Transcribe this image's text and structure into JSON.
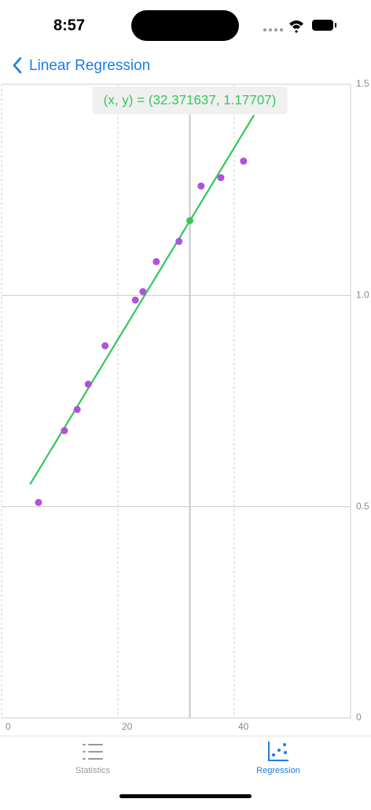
{
  "status_bar": {
    "time": "8:57"
  },
  "nav": {
    "back_title": "Linear Regression"
  },
  "chart_data": {
    "type": "scatter",
    "annotation": "(x, y) = (32.371637, 1.17707)",
    "xlim": [
      0,
      60
    ],
    "xticks": [
      0,
      20,
      40
    ],
    "ylim": [
      0,
      1.5
    ],
    "yticks": [
      0,
      0.5,
      {
        "value": 1,
        "label": "1.0"
      },
      1.5
    ],
    "grid": true,
    "series": [
      {
        "type": "scatter",
        "color": "#af52de",
        "x": [
          6.35,
          10.8,
          13.0,
          14.9,
          17.8,
          23.0,
          24.3,
          26.6,
          30.5,
          34.3,
          37.7,
          41.6
        ],
        "values": [
          0.51,
          0.68,
          0.73,
          0.79,
          0.881,
          0.989,
          1.009,
          1.08,
          1.128,
          1.259,
          1.279,
          1.318
        ]
      },
      {
        "type": "line",
        "color": "#34c759",
        "x": [
          4.9,
          43.4
        ],
        "values": [
          0.553,
          1.427
        ]
      },
      {
        "type": "highlight",
        "color": "#34c759",
        "x": [
          32.371637
        ],
        "values": [
          1.17707
        ]
      }
    ]
  },
  "tab_bar": {
    "items": [
      "Statistics",
      "Regression"
    ]
  }
}
